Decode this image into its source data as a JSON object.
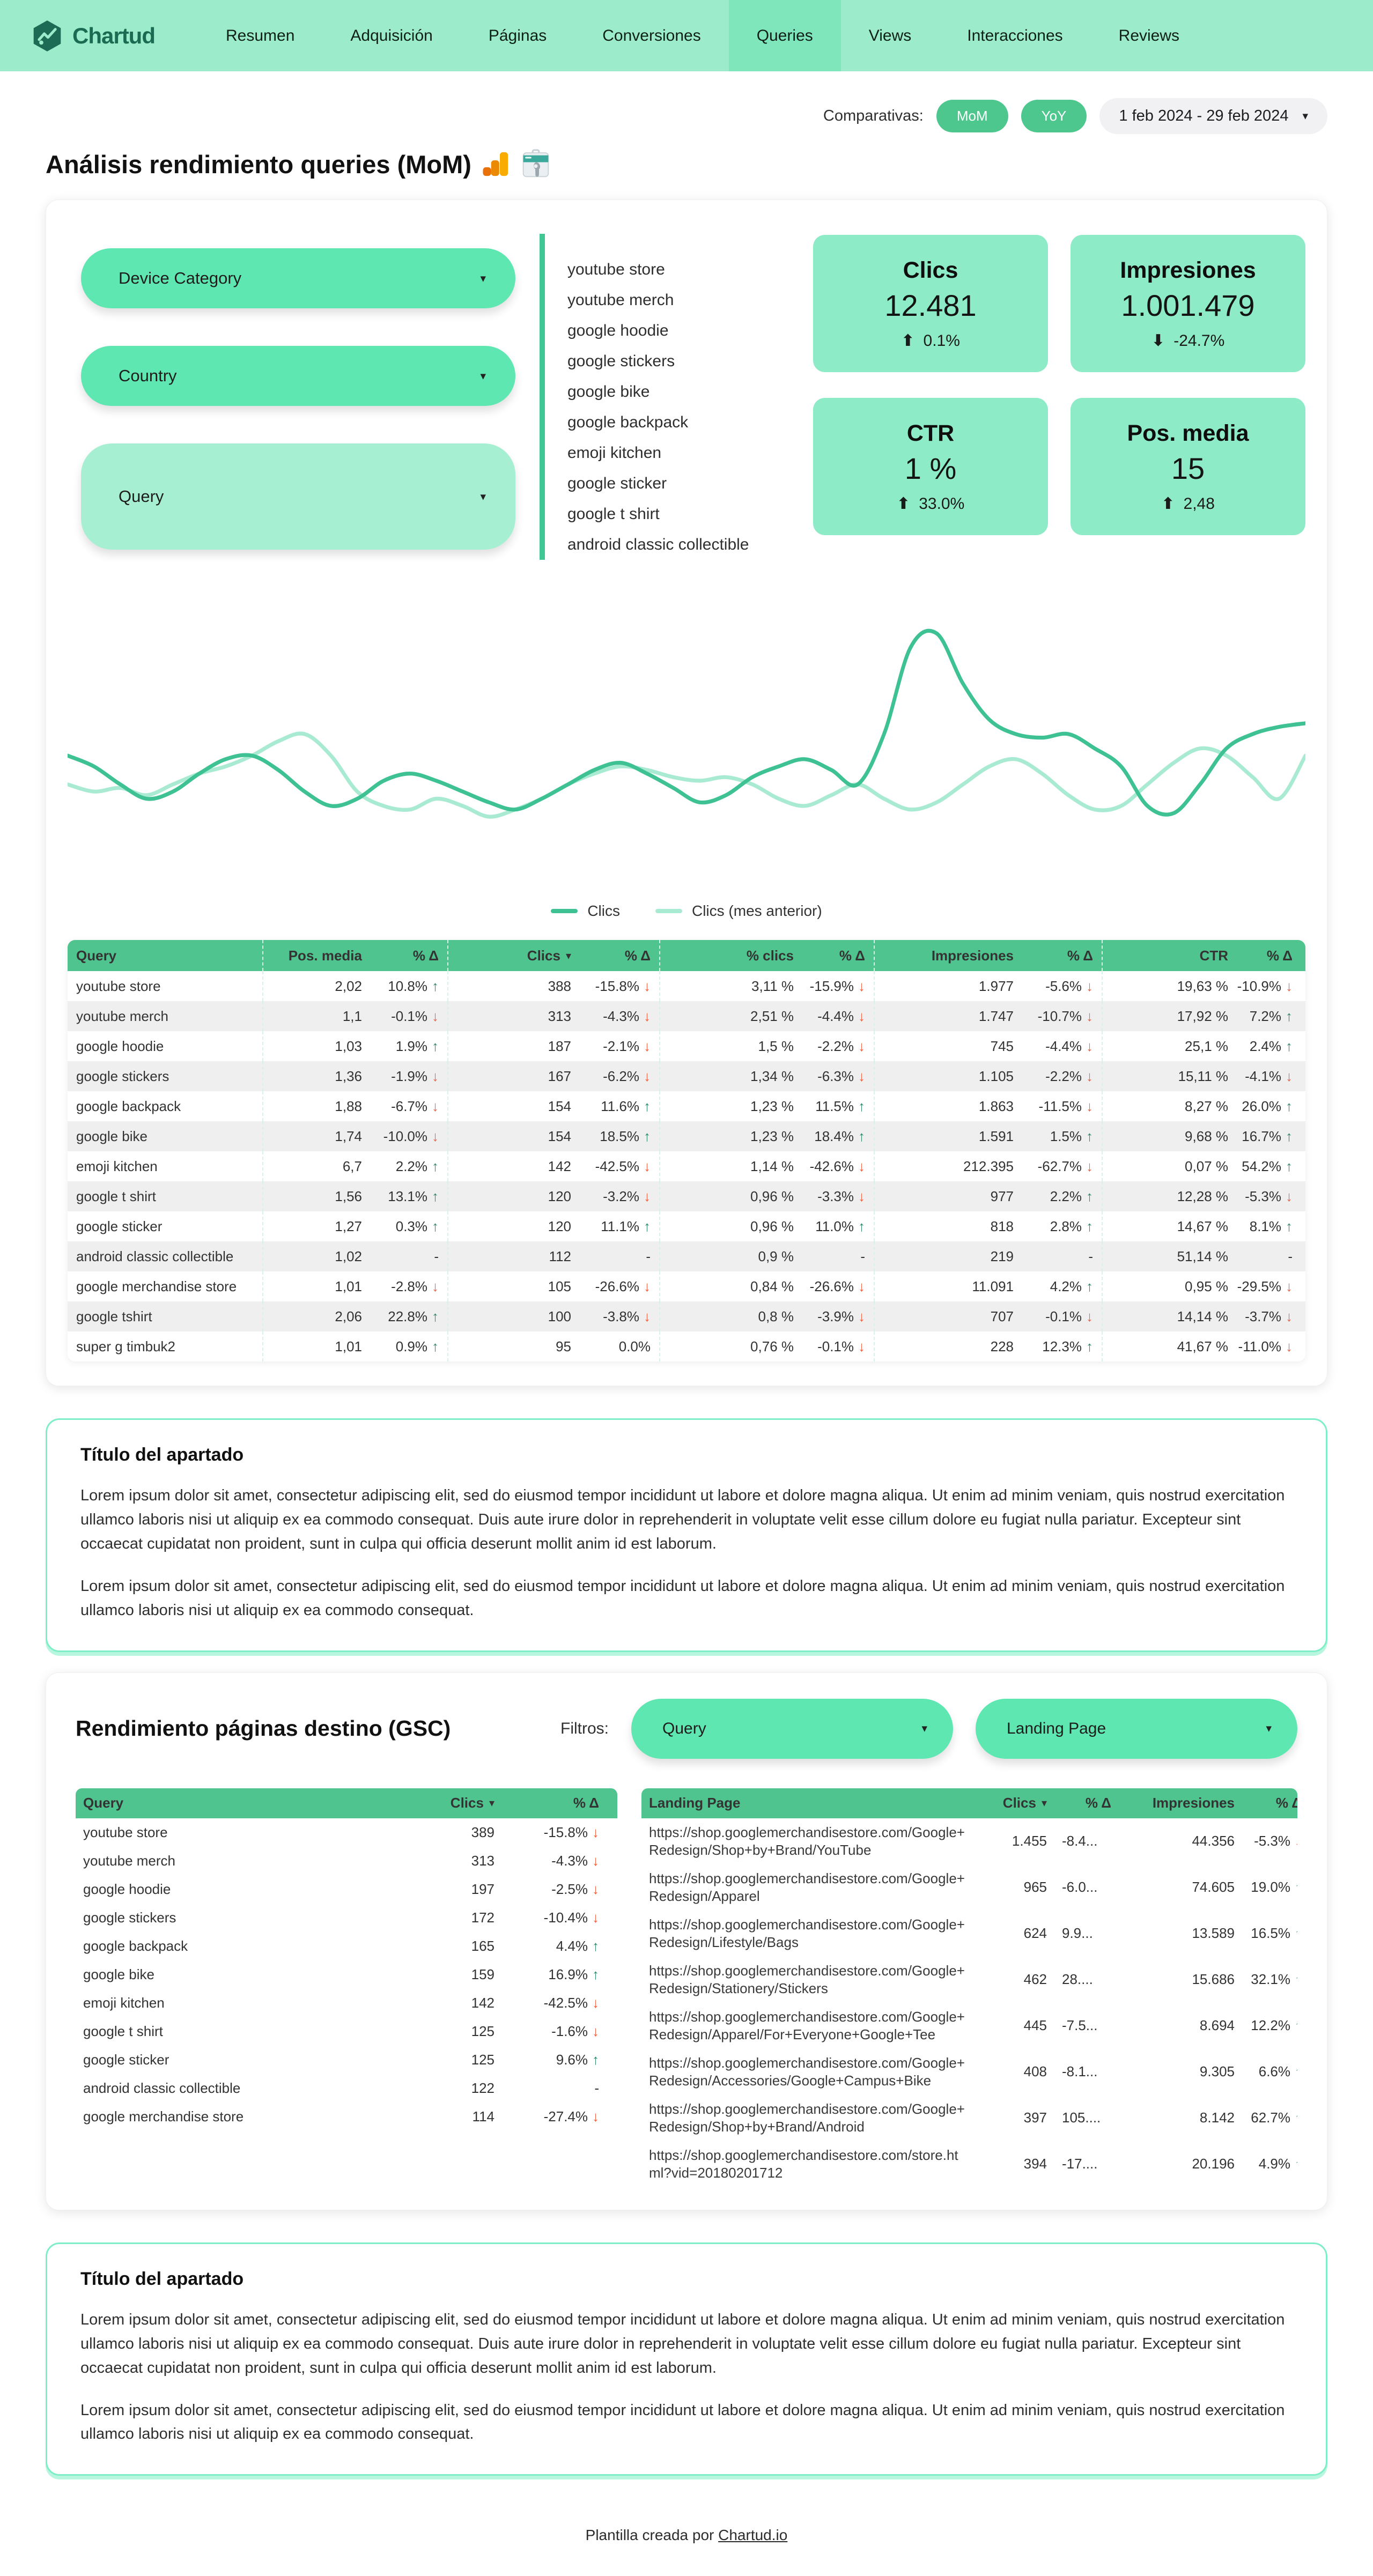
{
  "brand": {
    "name": "Chartud"
  },
  "nav": {
    "tabs": [
      {
        "label": "Resumen",
        "active": false
      },
      {
        "label": "Adquisición",
        "active": false
      },
      {
        "label": "Páginas",
        "active": false
      },
      {
        "label": "Conversiones",
        "active": false
      },
      {
        "label": "Queries",
        "active": true
      },
      {
        "label": "Views",
        "active": false
      },
      {
        "label": "Interacciones",
        "active": false
      },
      {
        "label": "Reviews",
        "active": false
      }
    ]
  },
  "header": {
    "comparativas_label": "Comparativas:",
    "mom_label": "MoM",
    "yoy_label": "YoY",
    "date_range": "1 feb 2024 - 29 feb 2024",
    "title": "Análisis rendimiento queries (MoM)"
  },
  "filters": {
    "device_label": "Device Category",
    "country_label": "Country",
    "query_label": "Query"
  },
  "query_list": [
    "youtube store",
    "youtube merch",
    "google hoodie",
    "google stickers",
    "google bike",
    "google backpack",
    "emoji kitchen",
    "google sticker",
    "google t shirt",
    "android classic collectible"
  ],
  "kpis": [
    {
      "label": "Clics",
      "value": "12.481",
      "delta": "0.1%",
      "dir": "up"
    },
    {
      "label": "Impresiones",
      "value": "1.001.479",
      "delta": "-24.7%",
      "dir": "down"
    },
    {
      "label": "CTR",
      "value": "1 %",
      "delta": "33.0%",
      "dir": "up"
    },
    {
      "label": "Pos. media",
      "value": "15",
      "delta": "2,48",
      "dir": "up"
    }
  ],
  "chart_data": {
    "type": "line",
    "title": "",
    "xlabel": "",
    "ylabel": "",
    "axes_visible": false,
    "grid": false,
    "legend_position": "bottom-center",
    "x_points": 48,
    "series": [
      {
        "name": "Clics",
        "color": "#3ec193",
        "values_relative": [
          58,
          55,
          50,
          46,
          48,
          53,
          57,
          58,
          54,
          48,
          44,
          46,
          51,
          53,
          51,
          48,
          45,
          43,
          46,
          50,
          54,
          56,
          53,
          49,
          45,
          47,
          52,
          55,
          57,
          54,
          50,
          64,
          88,
          92,
          78,
          68,
          64,
          63,
          64,
          60,
          55,
          44,
          42,
          50,
          60,
          64,
          66,
          67
        ]
      },
      {
        "name": "Clics (mes anterior)",
        "color": "#a9ead2",
        "values_relative": [
          50,
          48,
          49,
          47,
          50,
          53,
          55,
          58,
          62,
          64,
          58,
          48,
          44,
          43,
          46,
          44,
          41,
          43,
          46,
          50,
          53,
          55,
          54,
          52,
          51,
          52,
          50,
          46,
          44,
          47,
          50,
          46,
          43,
          45,
          50,
          55,
          57,
          53,
          47,
          43,
          44,
          50,
          56,
          60,
          58,
          52,
          46,
          58
        ]
      }
    ]
  },
  "main_table": {
    "columns": [
      "Query",
      "Pos. media",
      "% Δ",
      "Clics",
      "% Δ",
      "% clics",
      "% Δ",
      "Impresiones",
      "% Δ",
      "CTR",
      "% Δ"
    ],
    "sorted_column": 3,
    "rows": [
      [
        "youtube store",
        "2,02",
        "10.8%",
        "388",
        "-15.8%",
        "3,11 %",
        "-15.9%",
        "1.977",
        "-5.6%",
        "19,63 %",
        "-10.9%"
      ],
      [
        "youtube merch",
        "1,1",
        "-0.1%",
        "313",
        "-4.3%",
        "2,51 %",
        "-4.4%",
        "1.747",
        "-10.7%",
        "17,92 %",
        "7.2%"
      ],
      [
        "google hoodie",
        "1,03",
        "1.9%",
        "187",
        "-2.1%",
        "1,5 %",
        "-2.2%",
        "745",
        "-4.4%",
        "25,1 %",
        "2.4%"
      ],
      [
        "google stickers",
        "1,36",
        "-1.9%",
        "167",
        "-6.2%",
        "1,34 %",
        "-6.3%",
        "1.105",
        "-2.2%",
        "15,11 %",
        "-4.1%"
      ],
      [
        "google backpack",
        "1,88",
        "-6.7%",
        "154",
        "11.6%",
        "1,23 %",
        "11.5%",
        "1.863",
        "-11.5%",
        "8,27 %",
        "26.0%"
      ],
      [
        "google bike",
        "1,74",
        "-10.0%",
        "154",
        "18.5%",
        "1,23 %",
        "18.4%",
        "1.591",
        "1.5%",
        "9,68 %",
        "16.7%"
      ],
      [
        "emoji kitchen",
        "6,7",
        "2.2%",
        "142",
        "-42.5%",
        "1,14 %",
        "-42.6%",
        "212.395",
        "-62.7%",
        "0,07 %",
        "54.2%"
      ],
      [
        "google t shirt",
        "1,56",
        "13.1%",
        "120",
        "-3.2%",
        "0,96 %",
        "-3.3%",
        "977",
        "2.2%",
        "12,28 %",
        "-5.3%"
      ],
      [
        "google sticker",
        "1,27",
        "0.3%",
        "120",
        "11.1%",
        "0,96 %",
        "11.0%",
        "818",
        "2.8%",
        "14,67 %",
        "8.1%"
      ],
      [
        "android classic collectible",
        "1,02",
        "-",
        "112",
        "-",
        "0,9 %",
        "-",
        "219",
        "-",
        "51,14 %",
        "-"
      ],
      [
        "google merchandise store",
        "1,01",
        "-2.8%",
        "105",
        "-26.6%",
        "0,84 %",
        "-26.6%",
        "11.091",
        "4.2%",
        "0,95 %",
        "-29.5%"
      ],
      [
        "google tshirt",
        "2,06",
        "22.8%",
        "100",
        "-3.8%",
        "0,8 %",
        "-3.9%",
        "707",
        "-0.1%",
        "14,14 %",
        "-3.7%"
      ],
      [
        "super g timbuk2",
        "1,01",
        "0.9%",
        "95",
        "0.0%",
        "0,76 %",
        "-0.1%",
        "228",
        "12.3%",
        "41,67 %",
        "-11.0%"
      ]
    ]
  },
  "note1": {
    "title": "Título del apartado",
    "p1": "Lorem ipsum dolor sit amet, consectetur adipiscing elit, sed do eiusmod tempor incididunt ut labore et dolore magna aliqua. Ut enim ad minim veniam, quis nostrud exercitation ullamco laboris nisi ut aliquip ex ea commodo consequat. Duis aute irure dolor in reprehenderit in voluptate velit esse cillum dolore eu fugiat nulla pariatur. Excepteur sint occaecat cupidatat non proident, sunt in culpa qui officia deserunt mollit anim id est laborum.",
    "p2": "Lorem ipsum dolor sit amet, consectetur adipiscing elit, sed do eiusmod tempor incididunt ut labore et dolore magna aliqua. Ut enim ad minim veniam, quis nostrud exercitation ullamco laboris nisi ut aliquip ex ea commodo consequat."
  },
  "gsc": {
    "title": "Rendimiento páginas destino (GSC)",
    "filtros_label": "Filtros:",
    "filter_query_label": "Query",
    "filter_landing_label": "Landing Page",
    "query_table": {
      "columns": [
        "Query",
        "Clics",
        "% Δ"
      ],
      "sorted_column": 1,
      "rows": [
        [
          "youtube store",
          "389",
          "-15.8%"
        ],
        [
          "youtube merch",
          "313",
          "-4.3%"
        ],
        [
          "google hoodie",
          "197",
          "-2.5%"
        ],
        [
          "google stickers",
          "172",
          "-10.4%"
        ],
        [
          "google backpack",
          "165",
          "4.4%"
        ],
        [
          "google bike",
          "159",
          "16.9%"
        ],
        [
          "emoji kitchen",
          "142",
          "-42.5%"
        ],
        [
          "google t shirt",
          "125",
          "-1.6%"
        ],
        [
          "google sticker",
          "125",
          "9.6%"
        ],
        [
          "android classic collectible",
          "122",
          "-"
        ],
        [
          "google merchandise store",
          "114",
          "-27.4%"
        ]
      ]
    },
    "landing_table": {
      "columns": [
        "Landing Page",
        "Clics",
        "% Δ",
        "Impresiones",
        "% Δ"
      ],
      "sorted_column": 1,
      "rows": [
        [
          "https://shop.googlemerchandisestore.com/Google+Redesign/Shop+by+Brand/YouTube",
          "1.455",
          "-8.4...",
          "44.356",
          "-5.3%"
        ],
        [
          "https://shop.googlemerchandisestore.com/Google+Redesign/Apparel",
          "965",
          "-6.0...",
          "74.605",
          "19.0%"
        ],
        [
          "https://shop.googlemerchandisestore.com/Google+Redesign/Lifestyle/Bags",
          "624",
          "9.9...",
          "13.589",
          "16.5%"
        ],
        [
          "https://shop.googlemerchandisestore.com/Google+Redesign/Stationery/Stickers",
          "462",
          "28....",
          "15.686",
          "32.1%"
        ],
        [
          "https://shop.googlemerchandisestore.com/Google+Redesign/Apparel/For+Everyone+Google+Tee",
          "445",
          "-7.5...",
          "8.694",
          "12.2%"
        ],
        [
          "https://shop.googlemerchandisestore.com/Google+Redesign/Accessories/Google+Campus+Bike",
          "408",
          "-8.1...",
          "9.305",
          "6.6%"
        ],
        [
          "https://shop.googlemerchandisestore.com/Google+Redesign/Shop+by+Brand/Android",
          "397",
          "105....",
          "8.142",
          "62.7%"
        ],
        [
          "https://shop.googlemerchandisestore.com/store.html?vid=20180201712",
          "394",
          "-17....",
          "20.196",
          "4.9%"
        ]
      ]
    }
  },
  "note2": {
    "title": "Título del apartado",
    "p1": "Lorem ipsum dolor sit amet, consectetur adipiscing elit, sed do eiusmod tempor incididunt ut labore et dolore magna aliqua. Ut enim ad minim veniam, quis nostrud exercitation ullamco laboris nisi ut aliquip ex ea commodo consequat. Duis aute irure dolor in reprehenderit in voluptate velit esse cillum dolore eu fugiat nulla pariatur. Excepteur sint occaecat cupidatat non proident, sunt in culpa qui officia deserunt mollit anim id est laborum.",
    "p2": "Lorem ipsum dolor sit amet, consectetur adipiscing elit, sed do eiusmod tempor incididunt ut labore et dolore magna aliqua. Ut enim ad minim veniam, quis nostrud exercitation ullamco laboris nisi ut aliquip ex ea commodo consequat."
  },
  "footer": {
    "text": "Plantilla creada por",
    "link_label": "Chartud.io"
  },
  "colors": {
    "nav_bg": "#9ceccb",
    "nav_active": "#7fe6bb",
    "kpi_card": "#8debc8",
    "pill_green": "#5fe7b2",
    "pill_light": "#a7efd3",
    "button_green": "#4ec78e",
    "table_header": "#4fc48f",
    "row_alt": "#efefef",
    "delta_up": "#2a8767",
    "delta_down": "#f2603f",
    "line_dark": "#3ec193",
    "line_light": "#a9ead2",
    "note_border": "#7deec5",
    "logo_teal": "#1b6a52"
  }
}
